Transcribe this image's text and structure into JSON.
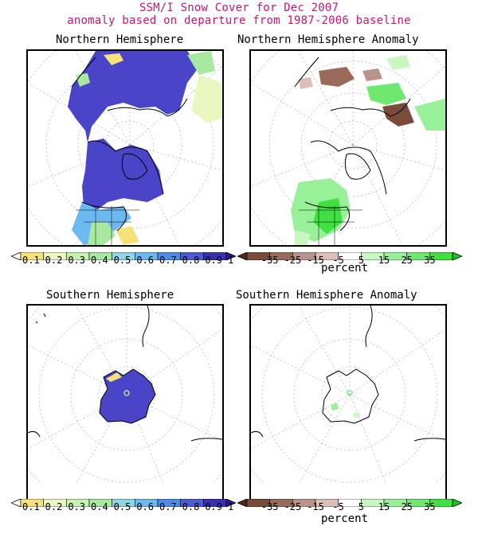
{
  "header": {
    "title_line1": "SSM/I Snow Cover for Dec 2007",
    "title_line2": "anomaly based on departure from 1987-2006 baseline"
  },
  "panels": {
    "nh": {
      "title": "Northern Hemisphere"
    },
    "nh_anom": {
      "title": "Northern Hemisphere Anomaly"
    },
    "sh": {
      "title": "Southern Hemisphere"
    },
    "sh_anom": {
      "title": "Southern Hemisphere Anomaly"
    }
  },
  "colorbars": {
    "cover": {
      "labels": [
        "0.1",
        "0.2",
        "0.3",
        "0.4",
        "0.5",
        "0.6",
        "0.7",
        "0.8",
        "0.9",
        "1"
      ],
      "colors": [
        "#ffffff",
        "#f7e27a",
        "#e8f8c0",
        "#c8f0b0",
        "#a8e8a0",
        "#8cd8e8",
        "#6cb8f0",
        "#4c8ce8",
        "#4c5ad8",
        "#3a2fb0",
        "#2a1a90"
      ]
    },
    "anomaly": {
      "labels": [
        "-35",
        "-25",
        "-15",
        "-5",
        "5",
        "15",
        "25",
        "35"
      ],
      "colors": [
        "#4a2a1a",
        "#7a4a3a",
        "#9a6a5a",
        "#b8948a",
        "#dcc0b8",
        "#ffffff",
        "#c8f8c0",
        "#98f098",
        "#70e870",
        "#40e040",
        "#20c020"
      ],
      "unit": "percent"
    }
  },
  "legend_colors": {
    "snow_full": "#4a44c8",
    "snow_partial": "#4c8ce8",
    "positive_anomaly": "#6ee06e",
    "negative_anomaly": "#8a5a4a",
    "title_color": "#cc1177"
  }
}
